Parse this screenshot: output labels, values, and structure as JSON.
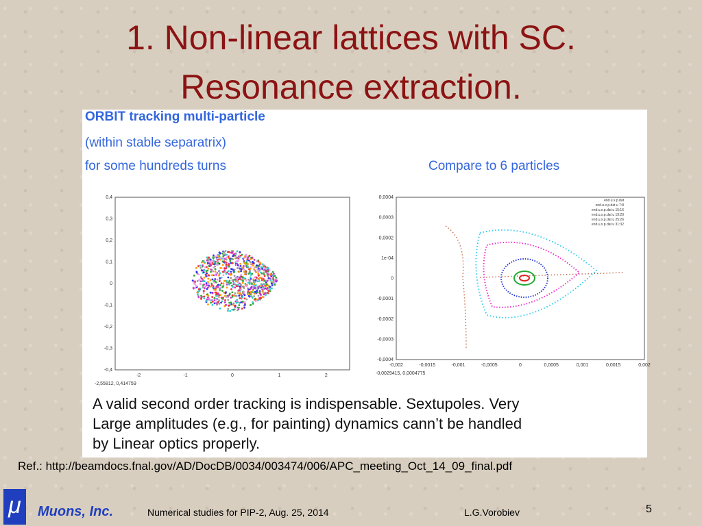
{
  "title_lines": [
    "1. Non-linear lattices with SC.",
    "Resonance extraction."
  ],
  "figure": {
    "heading": "ORBIT tracking multi-particle",
    "line2": "(within stable separatrix)",
    "line3": "for some hundreds   turns",
    "compare": "Compare to 6 particles",
    "left_plot": {
      "yticks": [
        "0,4",
        "0,3",
        "0,2",
        "0,1",
        "0",
        "-0,1",
        "-0,2",
        "-0,3",
        "-0,4"
      ],
      "xticks": [
        "-2",
        "-1",
        "0",
        "1",
        "2"
      ],
      "corner": "-2,55812, 0,414759"
    },
    "right_plot": {
      "yticks": [
        "0,0004",
        "0,0003",
        "0,0002",
        "1e-04",
        "0",
        "-0,0001",
        "-0,0002",
        "-0,0003",
        "-0,0004"
      ],
      "xticks": [
        "-0,002",
        "-0,0015",
        "-0,001",
        "-0,0005",
        "0",
        "0,0005",
        "0,001",
        "0,0015",
        "0,002"
      ],
      "corner": "-0,0029415, 0,0004775",
      "legend": [
        "end.u.x.p.dat",
        "end.u.x.p.dat u 7:8",
        "end.u.x.p.dat u 15:16",
        "end.u.x.p.dat u 19:20",
        "end.u.x.p.dat u 25:26",
        "end.u.x.p.dat u 31:32"
      ]
    },
    "caption": [
      "A valid second order tracking is indispensable. Sextupoles. Very",
      "Large amplitudes (e.g., for painting) dynamics cann’t be handled",
      "by Linear optics properly."
    ]
  },
  "reference": "Ref.:  http://beamdocs.fnal.gov/AD/DocDB/0034/003474/006/APC_meeting_Oct_14_09_final.pdf",
  "footer": {
    "logo": "μ",
    "company": "Muons, Inc.",
    "talk": "Numerical studies for PIP-2, Aug. 25, 2014",
    "author": "L.G.Vorobiev",
    "page": "5"
  }
}
